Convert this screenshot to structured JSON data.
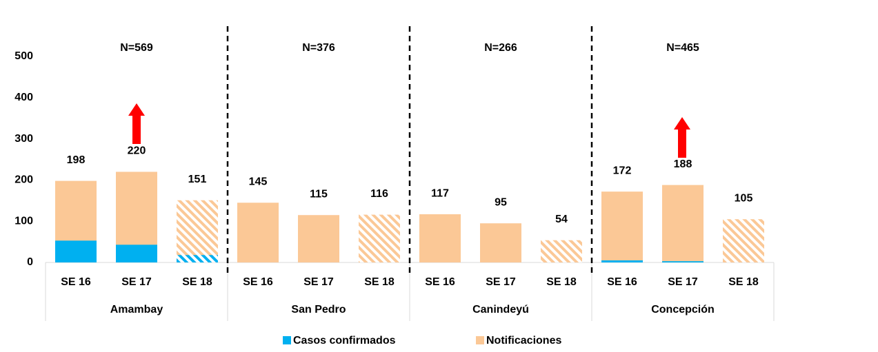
{
  "chart_data": {
    "type": "bar",
    "groups": [
      {
        "name": "Amambay",
        "n_label": "N=569"
      },
      {
        "name": "San Pedro",
        "n_label": "N=376"
      },
      {
        "name": "Canindeyú",
        "n_label": "N=266"
      },
      {
        "name": "Concepción",
        "n_label": "N=465"
      }
    ],
    "categories": [
      "SE 16",
      "SE 17",
      "SE 18",
      "SE 16",
      "SE 17",
      "SE 18",
      "SE 16",
      "SE 17",
      "SE 18",
      "SE 16",
      "SE 17",
      "SE 18"
    ],
    "series": [
      {
        "name": "Casos confirmados",
        "color": "#00b0f0",
        "values": [
          53,
          43,
          18,
          0,
          0,
          0,
          0,
          0,
          0,
          5,
          3,
          0
        ]
      },
      {
        "name": "Notificaciones",
        "color": "#fbc896",
        "values": [
          198,
          220,
          151,
          145,
          115,
          116,
          117,
          95,
          54,
          172,
          188,
          105
        ]
      }
    ],
    "hatched": [
      false,
      false,
      true,
      false,
      false,
      true,
      false,
      false,
      true,
      false,
      false,
      true
    ],
    "ylim": [
      0,
      500
    ],
    "yticks": [
      0,
      100,
      200,
      300,
      400,
      500
    ],
    "grid": false
  }
}
